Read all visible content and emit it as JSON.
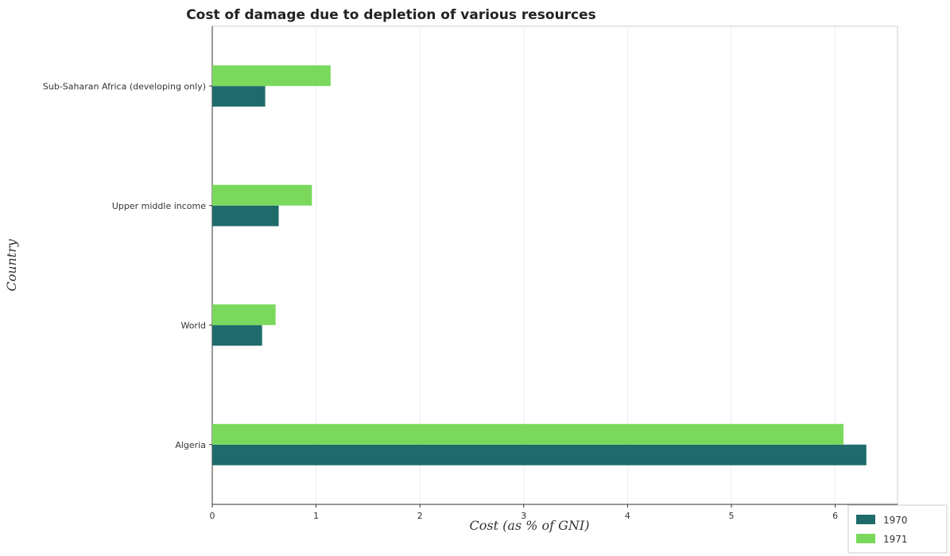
{
  "chart_data": {
    "type": "bar",
    "orientation": "horizontal",
    "title": "Cost of damage due to depletion of various resources",
    "xlabel": "Cost (as % of GNI)",
    "ylabel": "Country",
    "categories": [
      "Sub-Saharan Africa (developing only)",
      "Upper middle income",
      "World",
      "Algeria"
    ],
    "series": [
      {
        "name": "1970",
        "color": "#1f6b6b",
        "values": [
          0.51,
          0.64,
          0.48,
          6.3
        ]
      },
      {
        "name": "1971",
        "color": "#7ad95c",
        "values": [
          1.14,
          0.96,
          0.61,
          6.08
        ]
      }
    ],
    "xlim": [
      0,
      6.77
    ],
    "xticks": [
      "0",
      "1",
      "2",
      "3",
      "4",
      "5",
      "6"
    ],
    "grid": true,
    "legend_position": "bottom-right"
  }
}
